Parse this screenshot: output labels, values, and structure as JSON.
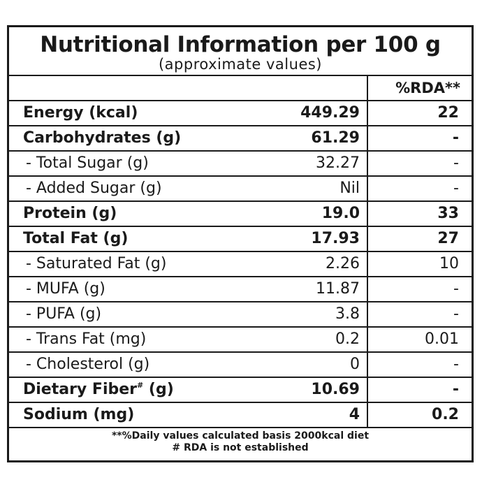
{
  "header": {
    "title": "Nutritional Information per 100 g",
    "subtitle": "(approximate values)"
  },
  "table": {
    "rda_header": "%RDA**",
    "rows": [
      {
        "name": "Energy (kcal)",
        "value": "449.29",
        "rda": "22",
        "bold": true
      },
      {
        "name": "Carbohydrates (g)",
        "value": "61.29",
        "rda": "-",
        "bold": true
      },
      {
        "name": "- Total Sugar (g)",
        "value": "32.27",
        "rda": "-",
        "bold": false
      },
      {
        "name": "- Added Sugar (g)",
        "value": "Nil",
        "rda": "-",
        "bold": false
      },
      {
        "name": "Protein (g)",
        "value": "19.0",
        "rda": "33",
        "bold": true
      },
      {
        "name": "Total Fat (g)",
        "value": "17.93",
        "rda": "27",
        "bold": true
      },
      {
        "name": "- Saturated Fat (g)",
        "value": "2.26",
        "rda": "10",
        "bold": false
      },
      {
        "name": "- MUFA (g)",
        "value": "11.87",
        "rda": "-",
        "bold": false
      },
      {
        "name": "- PUFA (g)",
        "value": "3.8",
        "rda": "-",
        "bold": false
      },
      {
        "name": "- Trans Fat (mg)",
        "value": "0.2",
        "rda": "0.01",
        "bold": false
      },
      {
        "name": "- Cholesterol (g)",
        "value": "0",
        "rda": "-",
        "bold": false
      },
      {
        "name": "Dietary Fiber",
        "name_mark": "#",
        "name_unit": " (g)",
        "value": "10.69",
        "rda": "-",
        "bold": true
      },
      {
        "name": "Sodium (mg)",
        "value": "4",
        "rda": "0.2",
        "bold": true
      }
    ]
  },
  "footnotes": {
    "rda_note": "**%Daily values calculated basis 2000kcal diet",
    "fiber_note": "# RDA is not established"
  }
}
